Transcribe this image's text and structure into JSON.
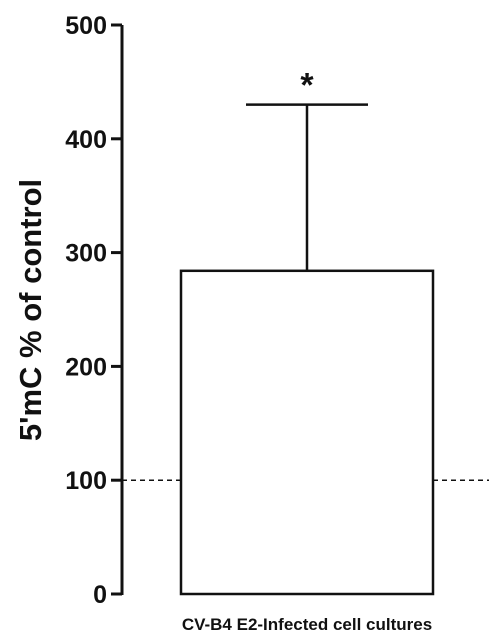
{
  "chart_data": {
    "type": "bar",
    "categories": [
      "CV-B4 E2-Infected cell cultures"
    ],
    "values": [
      284
    ],
    "error_upper": [
      430
    ],
    "significance": [
      "*"
    ],
    "reference_line": 100,
    "title": "",
    "xlabel": "",
    "ylabel": "5'mC % of control",
    "ylim": [
      0,
      500
    ],
    "yticks": [
      "0",
      "100",
      "200",
      "300",
      "400",
      "500"
    ],
    "grid": false,
    "colors": {
      "bar_fill": "#ffffff",
      "stroke": "#111111"
    }
  }
}
